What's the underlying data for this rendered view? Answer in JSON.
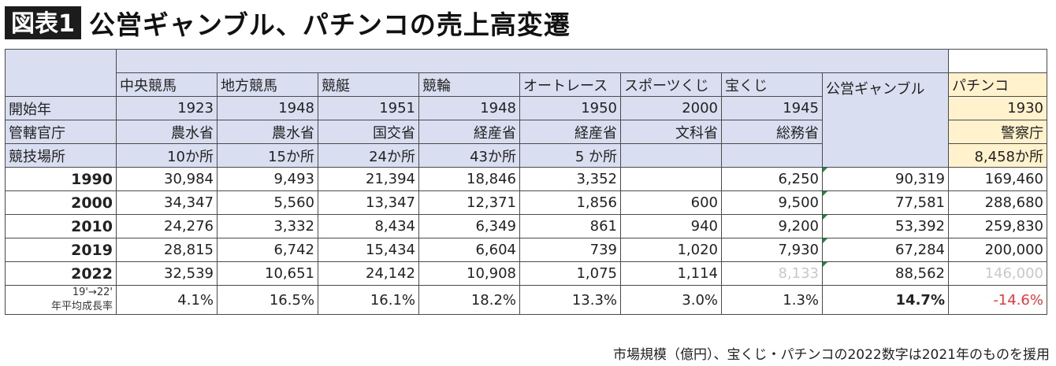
{
  "title": {
    "badge": "図表1",
    "text": "公営ギャンブル、パチンコの売上高変遷"
  },
  "columns": [
    "中央競馬",
    "地方競馬",
    "競艇",
    "競輪",
    "オートレース",
    "スポーツくじ",
    "宝くじ",
    "公営ギャンブル",
    "パチンコ"
  ],
  "info_rows": [
    {
      "label": "開始年",
      "values": [
        "1923",
        "1948",
        "1951",
        "1948",
        "1950",
        "2000",
        "1945",
        "",
        "1930"
      ]
    },
    {
      "label": "管轄官庁",
      "values": [
        "農水省",
        "農水省",
        "国交省",
        "経産省",
        "経産省",
        "文科省",
        "総務省",
        "",
        "警察庁"
      ]
    },
    {
      "label": "競技場所",
      "values": [
        "10か所",
        "15か所",
        "24か所",
        "43か所",
        "5 か所",
        "",
        "",
        "",
        "8,458か所"
      ]
    }
  ],
  "data_rows": [
    {
      "year": "1990",
      "values": [
        "30,984",
        "9,493",
        "21,394",
        "18,846",
        "3,352",
        "",
        "6,250",
        "90,319",
        "169,460"
      ]
    },
    {
      "year": "2000",
      "values": [
        "34,347",
        "5,560",
        "13,347",
        "12,371",
        "1,856",
        "600",
        "9,500",
        "77,581",
        "288,680"
      ]
    },
    {
      "year": "2010",
      "values": [
        "24,276",
        "3,332",
        "8,434",
        "6,349",
        "861",
        "940",
        "9,200",
        "53,392",
        "259,830"
      ]
    },
    {
      "year": "2019",
      "values": [
        "28,815",
        "6,742",
        "15,434",
        "6,604",
        "739",
        "1,020",
        "7,930",
        "67,284",
        "200,000"
      ]
    },
    {
      "year": "2022",
      "values": [
        "32,539",
        "10,651",
        "24,142",
        "10,908",
        "1,075",
        "1,114",
        "8,133",
        "88,562",
        "146,000"
      ]
    }
  ],
  "growth_row": {
    "label_line1": "19'→22'",
    "label_line2": "年平均成長率",
    "values": [
      "4.1%",
      "16.5%",
      "16.1%",
      "18.2%",
      "13.3%",
      "3.0%",
      "1.3%",
      "14.7%",
      "-14.6%"
    ]
  },
  "colors": {
    "header_blue": "#d9dff0",
    "header_yellow": "#fff2cc",
    "negative": "#e8383d",
    "faded": "#c8c8c8"
  },
  "footnote": "市場規模（億円）、宝くじ・パチンコの2022数字は2021年のものを援用"
}
